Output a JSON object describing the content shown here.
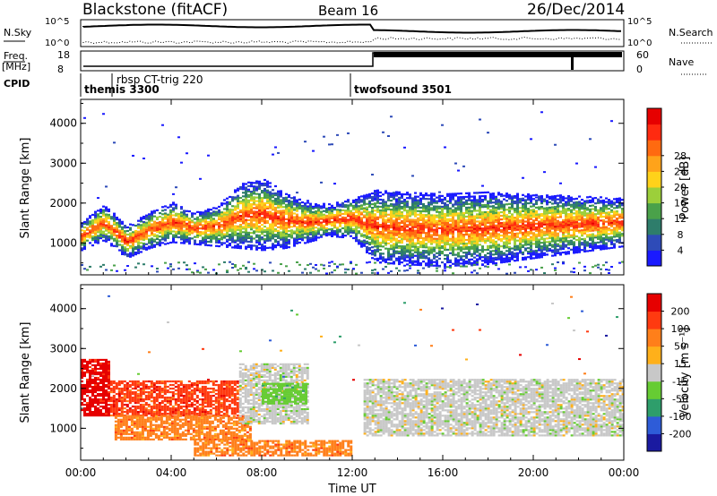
{
  "header": {
    "station": "Blackstone (fitACF)",
    "beam": "Beam 16",
    "date": "26/Dec/2014"
  },
  "aux_panels": {
    "nsky_label": "N.Sky",
    "nsearch_label": "N.Search",
    "nsky_ticks": [
      "10^5",
      "10^0"
    ],
    "freq_label_top": "Freq.",
    "freq_label_unit": "[MHz]",
    "freq_ticks": [
      "18",
      "8"
    ],
    "nave_label": "Nave",
    "nave_ticks": [
      "60",
      "0"
    ],
    "cpid_label": "CPID"
  },
  "cpid_segments": [
    {
      "label": "themis 3300",
      "start_hour": 0.0
    },
    {
      "label": "rbsp CT-trig 220",
      "start_hour": 1.4
    },
    {
      "label": "twofsound 3501",
      "start_hour": 11.9
    }
  ],
  "chart_data": [
    {
      "type": "heatmap",
      "title": "",
      "xlabel": "Time UT",
      "ylabel": "Slant Range [km]",
      "xlim_hours": [
        0,
        24
      ],
      "ylim": [
        200,
        4600
      ],
      "x_ticks": [
        "00:00",
        "04:00",
        "08:00",
        "12:00",
        "16:00",
        "20:00",
        "00:00"
      ],
      "y_ticks": [
        1000,
        2000,
        3000,
        4000
      ],
      "colorbar": {
        "label": "Power [dB]",
        "ticks": [
          "4",
          "8",
          "12",
          "16",
          "20",
          "24",
          "28"
        ],
        "colors": [
          "#1a1aff",
          "#2e4bb8",
          "#2e7d6b",
          "#4aa14a",
          "#9ccf3a",
          "#ffd21a",
          "#ffa31a",
          "#ff6a10",
          "#ff2a10",
          "#e60000"
        ]
      },
      "main_echo_band": [
        {
          "hour": 0.0,
          "center_km": 1150,
          "width_km": 350
        },
        {
          "hour": 1.0,
          "center_km": 1500,
          "width_km": 450
        },
        {
          "hour": 2.0,
          "center_km": 1000,
          "width_km": 400
        },
        {
          "hour": 3.0,
          "center_km": 1300,
          "width_km": 450
        },
        {
          "hour": 4.0,
          "center_km": 1500,
          "width_km": 500
        },
        {
          "hour": 5.0,
          "center_km": 1350,
          "width_km": 400
        },
        {
          "hour": 6.0,
          "center_km": 1400,
          "width_km": 500
        },
        {
          "hour": 7.0,
          "center_km": 1650,
          "width_km": 800
        },
        {
          "hour": 8.0,
          "center_km": 1700,
          "width_km": 900
        },
        {
          "hour": 9.0,
          "center_km": 1550,
          "width_km": 700
        },
        {
          "hour": 10.0,
          "center_km": 1500,
          "width_km": 500
        },
        {
          "hour": 11.0,
          "center_km": 1550,
          "width_km": 400
        },
        {
          "hour": 12.0,
          "center_km": 1600,
          "width_km": 500
        },
        {
          "hour": 13.0,
          "center_km": 1400,
          "width_km": 900
        },
        {
          "hour": 14.0,
          "center_km": 1350,
          "width_km": 900
        },
        {
          "hour": 16.0,
          "center_km": 1300,
          "width_km": 900
        },
        {
          "hour": 18.0,
          "center_km": 1350,
          "width_km": 900
        },
        {
          "hour": 20.0,
          "center_km": 1400,
          "width_km": 800
        },
        {
          "hour": 22.0,
          "center_km": 1450,
          "width_km": 700
        },
        {
          "hour": 24.0,
          "center_km": 1500,
          "width_km": 600
        }
      ]
    },
    {
      "type": "heatmap",
      "title": "",
      "xlabel": "Time UT",
      "ylabel": "Slant Range [km]",
      "xlim_hours": [
        0,
        24
      ],
      "ylim": [
        200,
        4600
      ],
      "x_ticks": [
        "00:00",
        "04:00",
        "08:00",
        "12:00",
        "16:00",
        "20:00",
        "00:00"
      ],
      "y_ticks": [
        1000,
        2000,
        3000,
        4000
      ],
      "colorbar": {
        "label": "Velocity [m s⁻¹]",
        "ticks": [
          "200",
          "100",
          "50",
          "15",
          "-15",
          "-50",
          "-100",
          "-200"
        ],
        "colors": [
          "#1a1aa0",
          "#2e5cd8",
          "#2e9e6b",
          "#66cc33",
          "#c8c8c8",
          "#ffb01a",
          "#ff7f1a",
          "#ff3a10",
          "#e60000"
        ]
      },
      "velocity_regions": [
        {
          "start_hour": 0.0,
          "end_hour": 1.3,
          "range_km": [
            1300,
            2700
          ],
          "color_index": 8
        },
        {
          "start_hour": 1.3,
          "end_hour": 7.0,
          "range_km": [
            1300,
            2200
          ],
          "color_index": 7
        },
        {
          "start_hour": 1.5,
          "end_hour": 7.5,
          "range_km": [
            700,
            1300
          ],
          "color_index": 6
        },
        {
          "start_hour": 7.0,
          "end_hour": 10.0,
          "range_km": [
            1100,
            2600
          ],
          "color_index": 4
        },
        {
          "start_hour": 8.0,
          "end_hour": 10.0,
          "range_km": [
            1600,
            2100
          ],
          "color_index": 3
        },
        {
          "start_hour": 12.5,
          "end_hour": 24.0,
          "range_km": [
            800,
            2200
          ],
          "color_index": 4
        },
        {
          "start_hour": 5.0,
          "end_hour": 12.0,
          "range_km": [
            300,
            700
          ],
          "color_index": 6
        }
      ]
    }
  ]
}
